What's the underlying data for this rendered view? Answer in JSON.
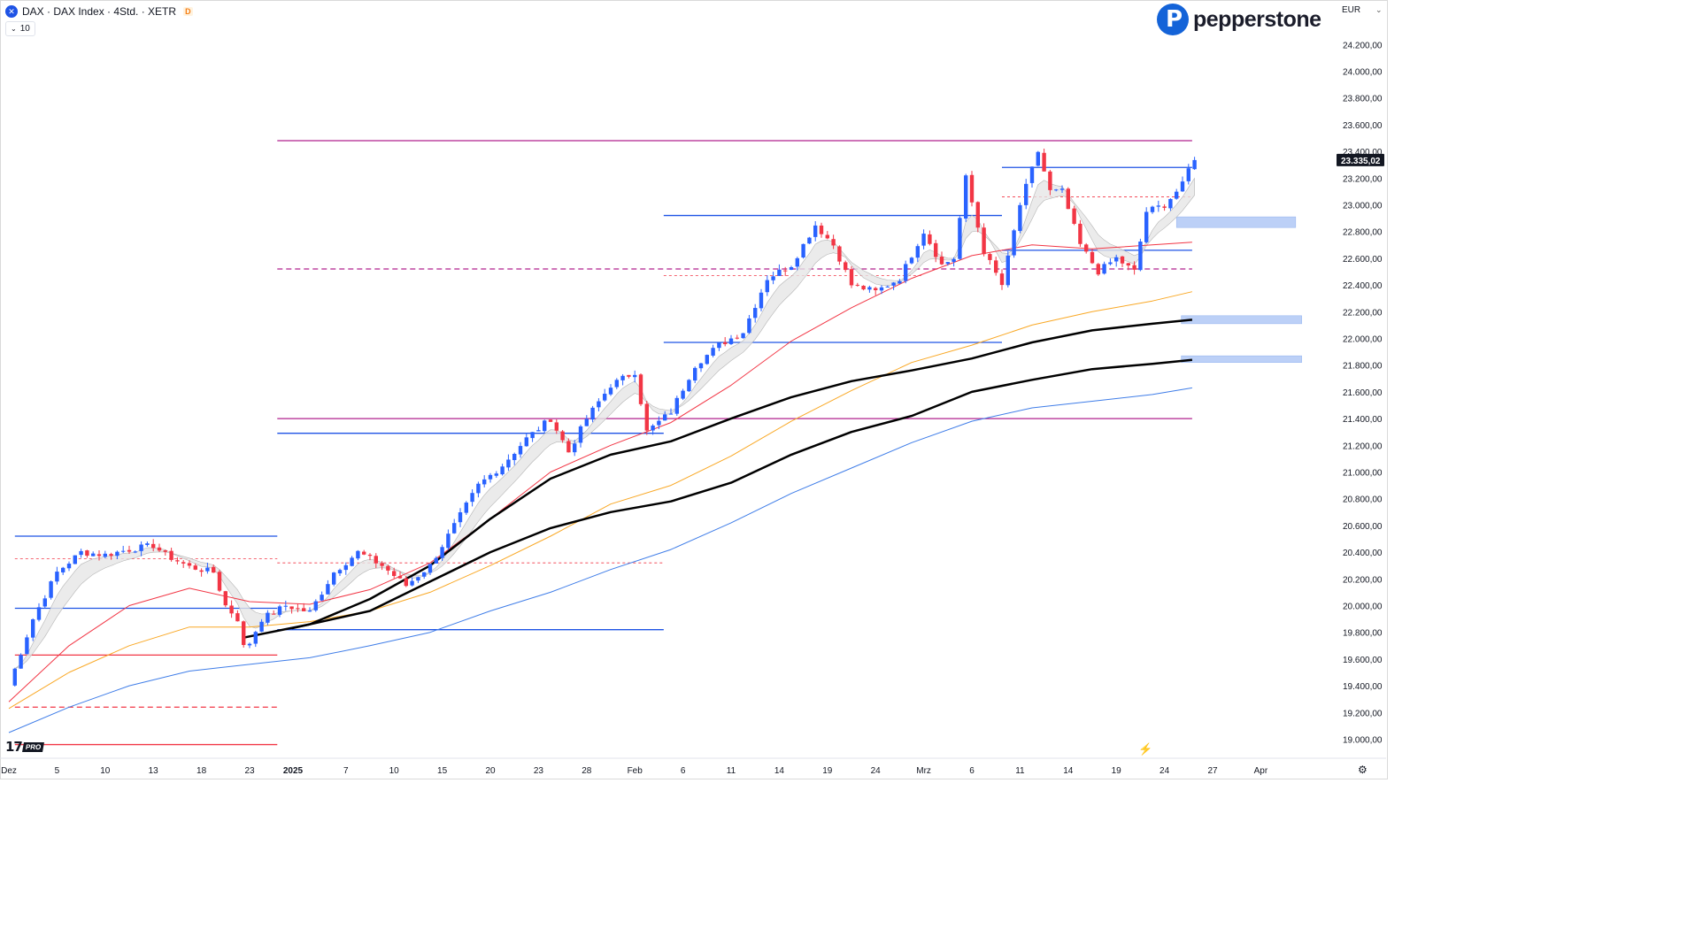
{
  "header": {
    "symbol_icon": "x-circle-icon",
    "symbol_label": "DAX · DAX Index · 4Std. · XETR",
    "badge": "D",
    "interval_value": "10"
  },
  "brand": {
    "name": "pepperstone",
    "icon": "pepperstone-p-icon"
  },
  "currency": "EUR",
  "footer": {
    "tv_badge": "PRO",
    "settings_icon": "gear-icon",
    "flash_icon": "lightning-icon"
  },
  "chart_data": {
    "type": "candlestick",
    "y_range": [
      18900,
      24350
    ],
    "y_ticks": [
      19000,
      19200,
      19400,
      19600,
      19800,
      20000,
      20200,
      20400,
      20600,
      20800,
      21000,
      21200,
      21400,
      21600,
      21800,
      22000,
      22200,
      22400,
      22600,
      22800,
      23000,
      23200,
      23400,
      23600,
      23800,
      24000,
      24200
    ],
    "y_tick_labels": [
      "19.000,00",
      "19.200,00",
      "19.400,00",
      "19.600,00",
      "19.800,00",
      "20.000,00",
      "20.200,00",
      "20.400,00",
      "20.600,00",
      "20.800,00",
      "21.000,00",
      "21.200,00",
      "21.400,00",
      "21.600,00",
      "21.800,00",
      "22.000,00",
      "22.200,00",
      "22.400,00",
      "22.600,00",
      "22.800,00",
      "23.000,00",
      "23.200,00",
      "23.400,00",
      "23.600,00",
      "23.800,00",
      "24.000,00",
      "24.200,00"
    ],
    "x_range": [
      0,
      106.3
    ],
    "x_ticks": [
      {
        "x": 0,
        "label": "Dez"
      },
      {
        "x": 4,
        "label": "5"
      },
      {
        "x": 8,
        "label": "10"
      },
      {
        "x": 12,
        "label": "13"
      },
      {
        "x": 16,
        "label": "18"
      },
      {
        "x": 20,
        "label": "23"
      },
      {
        "x": 23.6,
        "label": "2025"
      },
      {
        "x": 28,
        "label": "7"
      },
      {
        "x": 32,
        "label": "10"
      },
      {
        "x": 36,
        "label": "15"
      },
      {
        "x": 40,
        "label": "20"
      },
      {
        "x": 44,
        "label": "23"
      },
      {
        "x": 48,
        "label": "28"
      },
      {
        "x": 52,
        "label": "Feb"
      },
      {
        "x": 56,
        "label": "6"
      },
      {
        "x": 60,
        "label": "11"
      },
      {
        "x": 64,
        "label": "14"
      },
      {
        "x": 68,
        "label": "19"
      },
      {
        "x": 72,
        "label": "24"
      },
      {
        "x": 76,
        "label": "Mrz"
      },
      {
        "x": 80,
        "label": "6"
      },
      {
        "x": 84,
        "label": "11"
      },
      {
        "x": 88,
        "label": "14"
      },
      {
        "x": 92,
        "label": "19"
      },
      {
        "x": 96,
        "label": "24"
      },
      {
        "x": 100,
        "label": "27"
      },
      {
        "x": 104,
        "label": "Apr"
      }
    ],
    "last_price": 23335.02,
    "last_price_label": "23.335,02",
    "up_color": "#2962ff",
    "down_color": "#f23645",
    "key_anchors": [
      {
        "x": 0,
        "price": 19400
      },
      {
        "x": 2,
        "price": 19900
      },
      {
        "x": 4,
        "price": 20250
      },
      {
        "x": 6,
        "price": 20400
      },
      {
        "x": 8,
        "price": 20380
      },
      {
        "x": 10,
        "price": 20420
      },
      {
        "x": 12,
        "price": 20450
      },
      {
        "x": 13,
        "price": 20380
      },
      {
        "x": 15,
        "price": 20290
      },
      {
        "x": 17,
        "price": 20250
      },
      {
        "x": 18,
        "price": 20000
      },
      {
        "x": 19,
        "price": 19900
      },
      {
        "x": 19.6,
        "price": 19650
      },
      {
        "x": 21,
        "price": 19900
      },
      {
        "x": 23,
        "price": 20000
      },
      {
        "x": 25,
        "price": 19950
      },
      {
        "x": 27,
        "price": 20250
      },
      {
        "x": 29,
        "price": 20400
      },
      {
        "x": 31,
        "price": 20300
      },
      {
        "x": 33,
        "price": 20150
      },
      {
        "x": 35,
        "price": 20300
      },
      {
        "x": 37,
        "price": 20600
      },
      {
        "x": 39,
        "price": 20900
      },
      {
        "x": 41,
        "price": 21050
      },
      {
        "x": 43,
        "price": 21250
      },
      {
        "x": 45,
        "price": 21400
      },
      {
        "x": 46.5,
        "price": 21150
      },
      {
        "x": 48,
        "price": 21400
      },
      {
        "x": 50,
        "price": 21650
      },
      {
        "x": 52,
        "price": 21750
      },
      {
        "x": 53,
        "price": 21300
      },
      {
        "x": 55,
        "price": 21450
      },
      {
        "x": 57,
        "price": 21800
      },
      {
        "x": 59,
        "price": 21950
      },
      {
        "x": 61,
        "price": 22050
      },
      {
        "x": 63,
        "price": 22450
      },
      {
        "x": 65,
        "price": 22550
      },
      {
        "x": 67,
        "price": 22850
      },
      {
        "x": 68.5,
        "price": 22700
      },
      {
        "x": 70,
        "price": 22400
      },
      {
        "x": 72,
        "price": 22350
      },
      {
        "x": 74,
        "price": 22450
      },
      {
        "x": 76,
        "price": 22800
      },
      {
        "x": 77.5,
        "price": 22550
      },
      {
        "x": 78.5,
        "price": 22600
      },
      {
        "x": 79.5,
        "price": 23200
      },
      {
        "x": 81,
        "price": 22650
      },
      {
        "x": 82.5,
        "price": 22400
      },
      {
        "x": 84,
        "price": 23000
      },
      {
        "x": 85.5,
        "price": 23400
      },
      {
        "x": 86.5,
        "price": 23100
      },
      {
        "x": 87.5,
        "price": 23100
      },
      {
        "x": 89,
        "price": 22700
      },
      {
        "x": 90.5,
        "price": 22500
      },
      {
        "x": 92,
        "price": 22600
      },
      {
        "x": 93.5,
        "price": 22500
      },
      {
        "x": 94.5,
        "price": 22950
      },
      {
        "x": 96,
        "price": 23000
      },
      {
        "x": 97.5,
        "price": 23150
      },
      {
        "x": 98.3,
        "price": 23335
      }
    ],
    "indicators": [
      {
        "name": "EMA 20",
        "color": "#f23645",
        "width": 1,
        "points": [
          [
            0,
            19280
          ],
          [
            5,
            19700
          ],
          [
            10,
            20000
          ],
          [
            15,
            20130
          ],
          [
            20,
            20030
          ],
          [
            25,
            20010
          ],
          [
            30,
            20120
          ],
          [
            35,
            20320
          ],
          [
            40,
            20650
          ],
          [
            45,
            21000
          ],
          [
            50,
            21200
          ],
          [
            55,
            21370
          ],
          [
            60,
            21650
          ],
          [
            65,
            21980
          ],
          [
            70,
            22230
          ],
          [
            75,
            22450
          ],
          [
            80,
            22620
          ],
          [
            85,
            22700
          ],
          [
            90,
            22670
          ],
          [
            95,
            22700
          ],
          [
            98.3,
            22720
          ]
        ]
      },
      {
        "name": "EMA 50",
        "color": "#f9a825",
        "width": 1,
        "points": [
          [
            0,
            19230
          ],
          [
            5,
            19500
          ],
          [
            10,
            19700
          ],
          [
            15,
            19840
          ],
          [
            20,
            19840
          ],
          [
            25,
            19880
          ],
          [
            30,
            19960
          ],
          [
            35,
            20100
          ],
          [
            40,
            20300
          ],
          [
            45,
            20520
          ],
          [
            50,
            20760
          ],
          [
            55,
            20900
          ],
          [
            60,
            21120
          ],
          [
            65,
            21380
          ],
          [
            70,
            21610
          ],
          [
            75,
            21820
          ],
          [
            80,
            21950
          ],
          [
            85,
            22100
          ],
          [
            90,
            22200
          ],
          [
            95,
            22280
          ],
          [
            98.3,
            22350
          ]
        ]
      },
      {
        "name": "EMA 100",
        "color": "#000000",
        "width": 2.5,
        "points": [
          [
            19.5,
            19760
          ],
          [
            25,
            19860
          ],
          [
            30,
            20050
          ],
          [
            35,
            20300
          ],
          [
            40,
            20650
          ],
          [
            45,
            20950
          ],
          [
            50,
            21130
          ],
          [
            55,
            21230
          ],
          [
            60,
            21400
          ],
          [
            65,
            21560
          ],
          [
            70,
            21680
          ],
          [
            75,
            21760
          ],
          [
            80,
            21850
          ],
          [
            85,
            21970
          ],
          [
            90,
            22060
          ],
          [
            95,
            22110
          ],
          [
            98.3,
            22140
          ]
        ]
      },
      {
        "name": "EMA 200",
        "color": "#000000",
        "width": 2.5,
        "points": [
          [
            23.5,
            19830
          ],
          [
            30,
            19960
          ],
          [
            35,
            20180
          ],
          [
            40,
            20400
          ],
          [
            45,
            20580
          ],
          [
            50,
            20700
          ],
          [
            55,
            20780
          ],
          [
            60,
            20920
          ],
          [
            65,
            21130
          ],
          [
            70,
            21300
          ],
          [
            75,
            21420
          ],
          [
            80,
            21600
          ],
          [
            85,
            21690
          ],
          [
            90,
            21770
          ],
          [
            95,
            21810
          ],
          [
            98.3,
            21840
          ]
        ]
      },
      {
        "name": "EMA 400",
        "color": "#3f7de8",
        "width": 1,
        "points": [
          [
            0,
            19050
          ],
          [
            5,
            19240
          ],
          [
            10,
            19400
          ],
          [
            15,
            19510
          ],
          [
            20,
            19560
          ],
          [
            25,
            19610
          ],
          [
            30,
            19700
          ],
          [
            35,
            19800
          ],
          [
            40,
            19960
          ],
          [
            45,
            20100
          ],
          [
            50,
            20270
          ],
          [
            55,
            20420
          ],
          [
            60,
            20620
          ],
          [
            65,
            20840
          ],
          [
            70,
            21030
          ],
          [
            75,
            21220
          ],
          [
            80,
            21380
          ],
          [
            85,
            21480
          ],
          [
            90,
            21530
          ],
          [
            95,
            21580
          ],
          [
            98.3,
            21630
          ]
        ]
      }
    ],
    "horizontal_levels": [
      {
        "price": 23480,
        "x1": 22.3,
        "x2": 98.3,
        "color": "#b0208e",
        "style": "solid"
      },
      {
        "price": 22520,
        "x1": 22.3,
        "x2": 98.3,
        "color": "#b0208e",
        "style": "dashed"
      },
      {
        "price": 21400,
        "x1": 22.3,
        "x2": 98.3,
        "color": "#b0208e",
        "style": "solid"
      },
      {
        "price": 23280,
        "x1": 82.5,
        "x2": 98.3,
        "color": "#1e53e5",
        "style": "solid"
      },
      {
        "price": 23060,
        "x1": 82.5,
        "x2": 98.3,
        "color": "#f23645",
        "style": "dotted"
      },
      {
        "price": 22920,
        "x1": 54.4,
        "x2": 82.5,
        "color": "#1e53e5",
        "style": "solid"
      },
      {
        "price": 22660,
        "x1": 82.5,
        "x2": 98.3,
        "color": "#1e53e5",
        "style": "solid"
      },
      {
        "price": 22470,
        "x1": 54.4,
        "x2": 76,
        "color": "#f23645",
        "style": "dotted"
      },
      {
        "price": 21970,
        "x1": 54.4,
        "x2": 82.5,
        "color": "#1e53e5",
        "style": "solid"
      },
      {
        "price": 21290,
        "x1": 22.3,
        "x2": 54.4,
        "color": "#1e53e5",
        "style": "solid"
      },
      {
        "price": 20520,
        "x1": 0.5,
        "x2": 22.3,
        "color": "#1e53e5",
        "style": "solid"
      },
      {
        "price": 20350,
        "x1": 0.5,
        "x2": 22.3,
        "color": "#f23645",
        "style": "dotted"
      },
      {
        "price": 20320,
        "x1": 22.3,
        "x2": 54.4,
        "color": "#f23645",
        "style": "dotted"
      },
      {
        "price": 19980,
        "x1": 0.5,
        "x2": 22.3,
        "color": "#1e53e5",
        "style": "solid"
      },
      {
        "price": 19820,
        "x1": 22.3,
        "x2": 54.4,
        "color": "#1e53e5",
        "style": "solid"
      },
      {
        "price": 19630,
        "x1": 0.5,
        "x2": 22.3,
        "color": "#f23645",
        "style": "solid"
      },
      {
        "price": 19240,
        "x1": 0.5,
        "x2": 22.3,
        "color": "#f23645",
        "style": "dashed"
      },
      {
        "price": 18960,
        "x1": 0.5,
        "x2": 22.3,
        "color": "#f23645",
        "style": "solid"
      }
    ],
    "zones": [
      {
        "x1": 97,
        "x2": 106.9,
        "p1": 22910,
        "p2": 22830,
        "color": "#bcd0f7"
      },
      {
        "x1": 97.4,
        "x2": 107.4,
        "p1": 22170,
        "p2": 22110,
        "color": "#bcd0f7"
      },
      {
        "x1": 97.4,
        "x2": 107.4,
        "p1": 21870,
        "p2": 21820,
        "color": "#bcd0f7"
      }
    ]
  }
}
